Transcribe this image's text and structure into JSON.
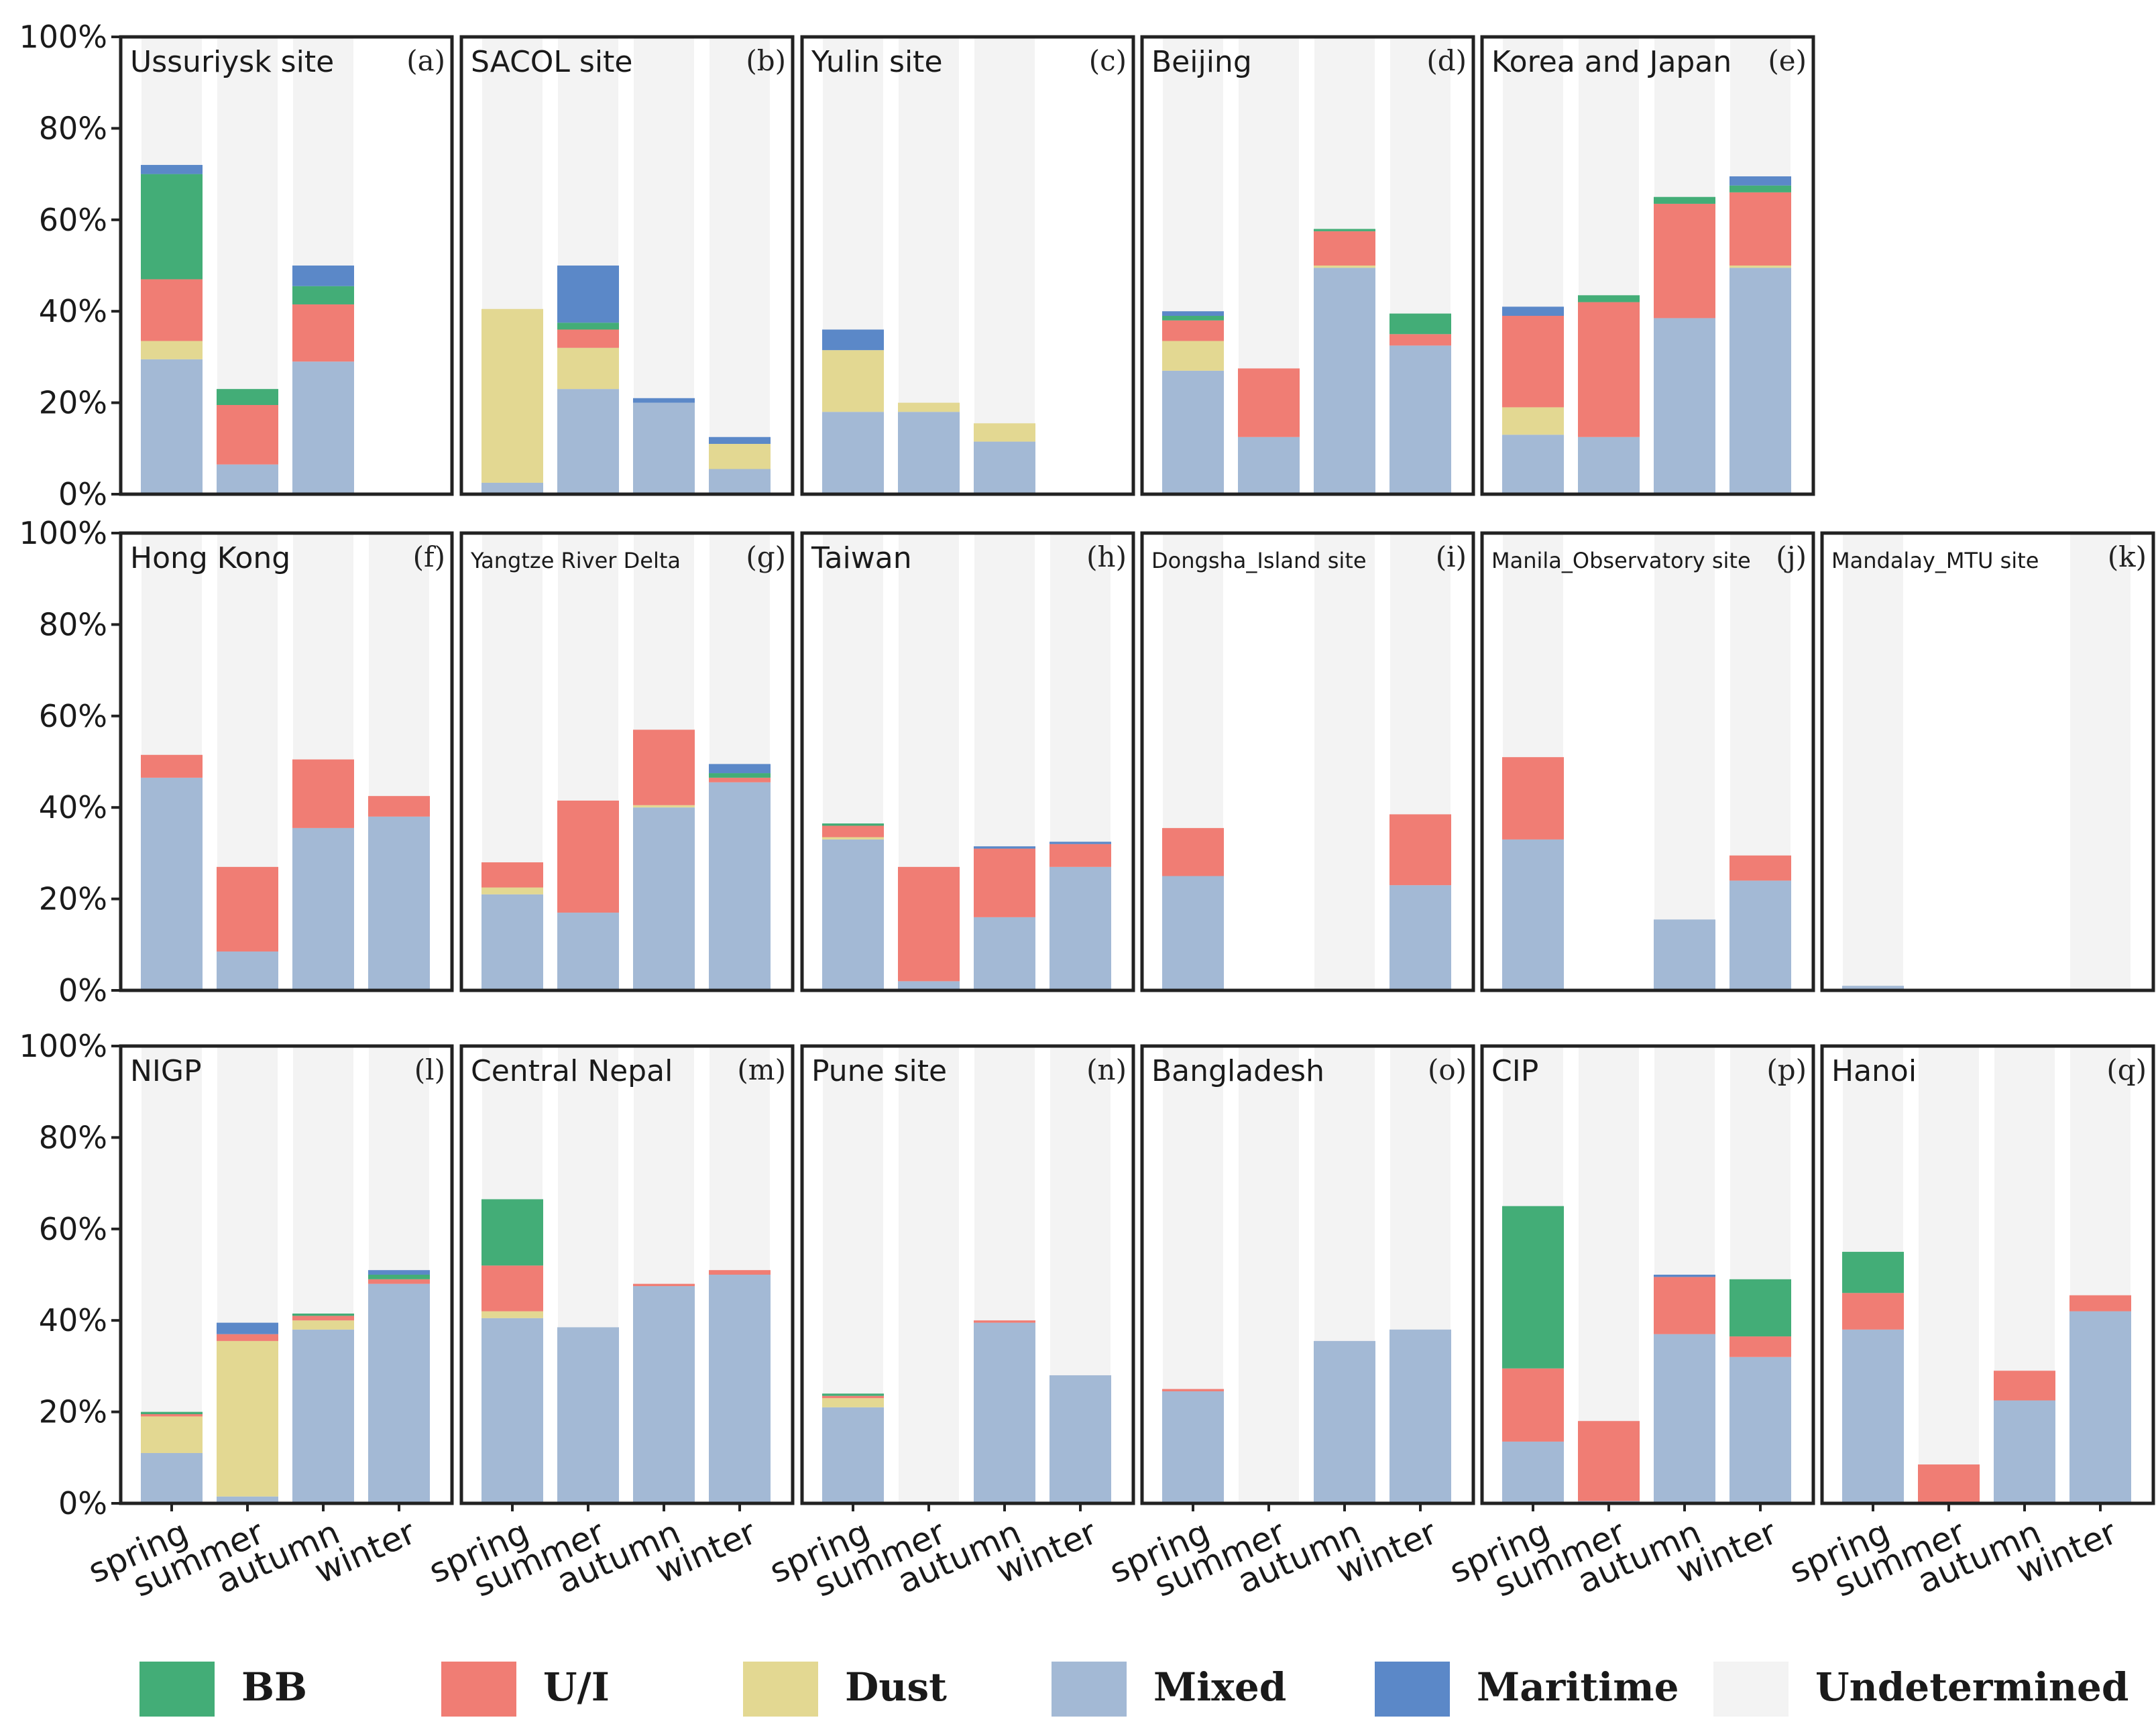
{
  "colors": {
    "BB": "#43ad77",
    "U/I": "#f07d74",
    "Dust": "#e3d892",
    "Mixed": "#a3b9d5",
    "Maritime": "#5b88c8",
    "Undetermined": "#f3f3f3"
  },
  "chart_data": {
    "type": "bar",
    "stacked": true,
    "categories": [
      "spring",
      "summer",
      "autumn",
      "winter"
    ],
    "y_tick_labels": [
      "0%",
      "20%",
      "40%",
      "60%",
      "80%",
      "100%"
    ],
    "ylim": [
      0,
      100
    ],
    "stack_order": [
      "Mixed",
      "Dust",
      "U/I",
      "BB",
      "Maritime"
    ],
    "legend": [
      {
        "key": "BB",
        "label": "BB"
      },
      {
        "key": "U/I",
        "label": "U/I"
      },
      {
        "key": "Dust",
        "label": "Dust"
      },
      {
        "key": "Mixed",
        "label": "Mixed"
      },
      {
        "key": "Maritime",
        "label": "Maritime"
      },
      {
        "key": "Undetermined",
        "label": "Undetermined"
      }
    ],
    "panels": [
      {
        "title": "Ussuriysk site",
        "letter": "(a)",
        "bg": [
          true,
          true,
          true,
          false
        ],
        "bars": [
          {
            "Mixed": 29.5,
            "U/I": 13.5,
            "Dust": 4,
            "BB": 23,
            "Maritime": 2
          },
          {
            "Mixed": 6.5,
            "U/I": 13,
            "BB": 3.5
          },
          {
            "Mixed": 29,
            "U/I": 12.5,
            "BB": 4,
            "Maritime": 4.5
          },
          {}
        ]
      },
      {
        "title": "SACOL site",
        "letter": "(b)",
        "bg": [
          true,
          true,
          true,
          true
        ],
        "bars": [
          {
            "Mixed": 2.5,
            "Dust": 38
          },
          {
            "Mixed": 23,
            "U/I": 4,
            "Dust": 9,
            "BB": 1.5,
            "Maritime": 12.5
          },
          {
            "Mixed": 20,
            "Maritime": 1
          },
          {
            "Mixed": 5.5,
            "Dust": 5.5,
            "Maritime": 1.5
          }
        ]
      },
      {
        "title": "Yulin site",
        "letter": "(c)",
        "bg": [
          true,
          true,
          true,
          false
        ],
        "bars": [
          {
            "Mixed": 18,
            "Dust": 13.5,
            "Maritime": 4.5
          },
          {
            "Mixed": 18,
            "Dust": 2
          },
          {
            "Mixed": 11.5,
            "Dust": 4
          },
          {}
        ]
      },
      {
        "title": "Beijing",
        "letter": "(d)",
        "bg": [
          true,
          true,
          true,
          true
        ],
        "bars": [
          {
            "Mixed": 27,
            "U/I": 4.5,
            "Dust": 6.5,
            "BB": 1,
            "Maritime": 1
          },
          {
            "Mixed": 12.5,
            "U/I": 15
          },
          {
            "Mixed": 49.5,
            "U/I": 7.5,
            "Dust": 0.5,
            "BB": 0.5
          },
          {
            "Mixed": 32.5,
            "U/I": 2.5,
            "BB": 4.5
          }
        ]
      },
      {
        "title": "Korea and Japan",
        "letter": "(e)",
        "bg": [
          true,
          true,
          true,
          true
        ],
        "bars": [
          {
            "Mixed": 13,
            "U/I": 20,
            "Dust": 6,
            "Maritime": 2
          },
          {
            "Mixed": 12.5,
            "U/I": 29.5,
            "BB": 1.5
          },
          {
            "Mixed": 38.5,
            "U/I": 25,
            "BB": 1.5
          },
          {
            "Mixed": 49.5,
            "U/I": 16,
            "Dust": 0.5,
            "BB": 1.5,
            "Maritime": 2
          }
        ]
      },
      {
        "title": "Hong Kong",
        "letter": "(f)",
        "bg": [
          true,
          true,
          true,
          true
        ],
        "bars": [
          {
            "Mixed": 46.5,
            "U/I": 5
          },
          {
            "Mixed": 8.5,
            "U/I": 18.5
          },
          {
            "Mixed": 35.5,
            "U/I": 15
          },
          {
            "Mixed": 38,
            "U/I": 4.5
          }
        ]
      },
      {
        "title": "Yangtze River Delta",
        "letter": "(g)",
        "bg": [
          true,
          true,
          true,
          true
        ],
        "bars": [
          {
            "Mixed": 21,
            "U/I": 5.5,
            "Dust": 1.5
          },
          {
            "Mixed": 17,
            "U/I": 24.5
          },
          {
            "Mixed": 40,
            "U/I": 16.5,
            "Dust": 0.5
          },
          {
            "Mixed": 45.5,
            "U/I": 1,
            "BB": 1,
            "Maritime": 2
          }
        ]
      },
      {
        "title": "Taiwan",
        "letter": "(h)",
        "bg": [
          true,
          true,
          true,
          true
        ],
        "bars": [
          {
            "Mixed": 33,
            "U/I": 2.5,
            "Dust": 0.5,
            "BB": 0.5
          },
          {
            "Mixed": 2,
            "U/I": 25
          },
          {
            "Mixed": 16,
            "U/I": 15,
            "Maritime": 0.5
          },
          {
            "Mixed": 27,
            "U/I": 5,
            "Maritime": 0.5
          }
        ]
      },
      {
        "title": "Dongsha_Island site",
        "letter": "(i)",
        "bg": [
          true,
          false,
          true,
          true
        ],
        "bars": [
          {
            "Mixed": 25,
            "U/I": 10.5
          },
          {},
          {},
          {
            "Mixed": 23,
            "U/I": 15.5
          }
        ]
      },
      {
        "title": "Manila_Observatory site",
        "letter": "(j)",
        "bg": [
          true,
          false,
          true,
          true
        ],
        "bars": [
          {
            "Mixed": 33,
            "U/I": 18
          },
          {},
          {
            "Mixed": 15.5
          },
          {
            "Mixed": 24,
            "U/I": 5.5
          }
        ]
      },
      {
        "title": "Mandalay_MTU site",
        "letter": "(k)",
        "bg": [
          true,
          false,
          false,
          true
        ],
        "bars": [
          {
            "Mixed": 1
          },
          {},
          {},
          {}
        ]
      },
      {
        "title": "NIGP",
        "letter": "(l)",
        "bg": [
          true,
          true,
          true,
          true
        ],
        "bars": [
          {
            "Mixed": 11,
            "U/I": 0.5,
            "Dust": 8,
            "BB": 0.5
          },
          {
            "Mixed": 1.5,
            "U/I": 1.5,
            "Dust": 34,
            "Maritime": 2.5
          },
          {
            "Mixed": 38,
            "U/I": 1,
            "Dust": 2,
            "BB": 0.5
          },
          {
            "Mixed": 48,
            "U/I": 1,
            "BB": 1,
            "Maritime": 1
          }
        ]
      },
      {
        "title": "Central Nepal",
        "letter": "(m)",
        "bg": [
          true,
          true,
          true,
          true
        ],
        "bars": [
          {
            "Mixed": 40.5,
            "U/I": 10,
            "Dust": 1.5,
            "BB": 14.5
          },
          {
            "Mixed": 38.5
          },
          {
            "Mixed": 47.5,
            "U/I": 0.5
          },
          {
            "Mixed": 50,
            "U/I": 1
          }
        ]
      },
      {
        "title": "Pune  site",
        "letter": "(n)",
        "bg": [
          true,
          true,
          true,
          true
        ],
        "bars": [
          {
            "Mixed": 21,
            "U/I": 0.5,
            "Dust": 2,
            "BB": 0.5
          },
          {},
          {
            "Mixed": 39.5,
            "U/I": 0.5
          },
          {
            "Mixed": 28
          }
        ]
      },
      {
        "title": "Bangladesh",
        "letter": "(o)",
        "bg": [
          true,
          true,
          true,
          true
        ],
        "bars": [
          {
            "Mixed": 24.5,
            "U/I": 0.5
          },
          {},
          {
            "Mixed": 35.5
          },
          {
            "Mixed": 38
          }
        ]
      },
      {
        "title": "CIP",
        "letter": "(p)",
        "bg": [
          true,
          true,
          true,
          true
        ],
        "bars": [
          {
            "Mixed": 13.5,
            "U/I": 16,
            "BB": 35.5
          },
          {
            "Mixed": 0.5,
            "U/I": 17.5
          },
          {
            "Mixed": 37,
            "U/I": 12.5,
            "Maritime": 0.5
          },
          {
            "Mixed": 32,
            "U/I": 4.5,
            "BB": 12.5
          }
        ]
      },
      {
        "title": "Hanoi",
        "letter": "(q)",
        "bg": [
          true,
          true,
          true,
          true
        ],
        "bars": [
          {
            "Mixed": 38,
            "U/I": 8,
            "BB": 9
          },
          {
            "U/I": 8.5
          },
          {
            "Mixed": 22.5,
            "U/I": 6.5
          },
          {
            "Mixed": 42,
            "U/I": 3.5
          }
        ]
      }
    ]
  }
}
